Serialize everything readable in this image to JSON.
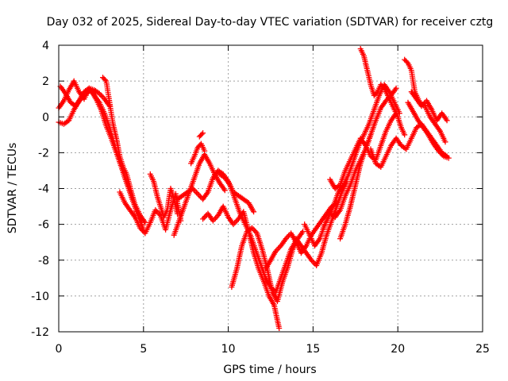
{
  "chart_data": {
    "type": "scatter",
    "title": "Day 032 of 2025, Sidereal Day-to-day VTEC variation (SDTVAR) for receiver cztg",
    "xlabel": "GPS time / hours",
    "ylabel": "SDTVAR / TECUs",
    "xlim": [
      0,
      25
    ],
    "ylim": [
      -12,
      4
    ],
    "xticks": [
      0,
      5,
      10,
      15,
      20,
      25
    ],
    "yticks": [
      -12,
      -10,
      -8,
      -6,
      -4,
      -2,
      0,
      2,
      4
    ],
    "grid": true,
    "marker": "+",
    "color": "#ff0000",
    "tracks": [
      {
        "x": [
          0.0,
          0.3,
          0.6,
          0.9,
          1.2,
          1.5,
          1.8,
          2.1,
          2.4,
          2.7,
          3.0,
          3.3,
          3.6,
          3.9,
          4.2,
          4.5,
          4.8,
          5.1
        ],
        "y": [
          0.5,
          0.9,
          1.5,
          2.0,
          1.4,
          1.0,
          1.6,
          1.2,
          0.8,
          0.2,
          -0.6,
          -1.6,
          -2.5,
          -3.4,
          -4.2,
          -4.9,
          -5.5,
          -5.9
        ]
      },
      {
        "x": [
          0.0,
          0.3,
          0.6,
          0.9,
          1.2,
          1.5,
          1.8,
          2.1,
          2.4,
          2.7,
          3.0
        ],
        "y": [
          -0.3,
          -0.4,
          -0.2,
          0.4,
          0.9,
          1.4,
          1.6,
          1.5,
          1.3,
          1.0,
          0.6
        ]
      },
      {
        "x": [
          0.1,
          0.4,
          0.7,
          1.0,
          1.3,
          1.6,
          1.9,
          2.2,
          2.5,
          2.8,
          3.1,
          3.4,
          3.7,
          4.0,
          4.3,
          4.6,
          4.9
        ],
        "y": [
          1.7,
          1.3,
          0.8,
          0.6,
          1.0,
          1.3,
          1.5,
          1.0,
          0.4,
          -0.5,
          -1.2,
          -2.0,
          -2.8,
          -3.6,
          -4.5,
          -5.3,
          -6.0
        ]
      },
      {
        "x": [
          2.6,
          2.8,
          3.0,
          3.2,
          3.4,
          3.6,
          3.8,
          4.0,
          4.2,
          4.4,
          4.6,
          4.8,
          5.0
        ],
        "y": [
          2.2,
          2.0,
          0.8,
          -0.4,
          -1.2,
          -2.2,
          -2.8,
          -3.2,
          -3.9,
          -4.6,
          -5.3,
          -5.8,
          -6.3
        ]
      },
      {
        "x": [
          3.6,
          3.9,
          4.2,
          4.5,
          4.8,
          5.1,
          5.4,
          5.7,
          6.0,
          6.3,
          6.6,
          6.9,
          7.2
        ],
        "y": [
          -4.2,
          -4.8,
          -5.2,
          -5.6,
          -6.2,
          -6.5,
          -5.9,
          -5.2,
          -5.5,
          -6.3,
          -5.2,
          -4.3,
          -5.8
        ]
      },
      {
        "x": [
          5.4,
          5.6,
          5.8,
          6.0,
          6.2,
          6.4,
          6.6,
          6.8,
          7.0
        ],
        "y": [
          -3.2,
          -3.6,
          -4.4,
          -5.0,
          -5.6,
          -5.2,
          -4.0,
          -4.6,
          -5.4
        ]
      },
      {
        "x": [
          6.8,
          7.1,
          7.4,
          7.7,
          8.0,
          8.3,
          8.6,
          8.9,
          9.2,
          9.5,
          9.8
        ],
        "y": [
          -6.6,
          -5.8,
          -5.0,
          -4.2,
          -3.4,
          -2.6,
          -2.1,
          -2.6,
          -3.2,
          -3.7,
          -4.1
        ]
      },
      {
        "x": [
          7.0,
          7.3,
          7.6,
          7.9,
          8.2,
          8.5,
          8.8,
          9.1,
          9.4,
          9.7,
          10.0,
          10.3,
          10.6,
          10.9,
          11.2,
          11.5
        ],
        "y": [
          -4.6,
          -4.4,
          -4.2,
          -4.0,
          -4.3,
          -4.6,
          -4.2,
          -3.4,
          -3.0,
          -3.2,
          -3.6,
          -4.2,
          -4.4,
          -4.6,
          -4.8,
          -5.3
        ]
      },
      {
        "x": [
          8.5,
          8.8,
          9.1,
          9.4,
          9.7,
          10.0,
          10.3,
          10.6,
          10.9,
          11.2,
          11.5,
          11.8,
          12.1,
          12.4,
          12.7,
          13.0
        ],
        "y": [
          -5.7,
          -5.4,
          -5.8,
          -5.5,
          -5.0,
          -5.6,
          -6.0,
          -5.7,
          -5.3,
          -6.4,
          -7.6,
          -8.5,
          -9.2,
          -10.0,
          -10.5,
          -11.8
        ]
      },
      {
        "x": [
          9.5,
          9.8,
          10.1,
          10.4,
          10.7,
          11.0,
          11.3,
          11.6,
          11.9,
          12.2,
          12.5,
          12.8,
          13.1,
          13.4,
          13.7,
          14.0
        ],
        "y": [
          -3.2,
          -3.4,
          -3.8,
          -4.6,
          -5.4,
          -6.0,
          -6.6,
          -7.4,
          -8.2,
          -9.0,
          -9.5,
          -9.8,
          -9.0,
          -8.2,
          -7.4,
          -6.9
        ]
      },
      {
        "x": [
          10.2,
          10.5,
          10.8,
          11.1,
          11.4,
          11.7,
          12.0,
          12.3,
          12.6,
          12.9,
          13.2,
          13.5,
          13.8,
          14.1,
          14.4
        ],
        "y": [
          -9.5,
          -8.5,
          -7.2,
          -6.4,
          -6.2,
          -6.5,
          -7.4,
          -8.5,
          -9.8,
          -10.3,
          -9.2,
          -8.4,
          -7.4,
          -6.8,
          -6.4
        ]
      },
      {
        "x": [
          12.2,
          12.5,
          12.8,
          13.1,
          13.4,
          13.7,
          14.0,
          14.3,
          14.6,
          14.9,
          15.2,
          15.5,
          15.8,
          16.1,
          16.4
        ],
        "y": [
          -8.5,
          -8.0,
          -7.5,
          -7.2,
          -6.8,
          -6.5,
          -7.0,
          -7.6,
          -7.2,
          -6.6,
          -6.2,
          -5.8,
          -5.4,
          -5.0,
          -4.8
        ]
      },
      {
        "x": [
          14.0,
          14.3,
          14.6,
          14.9,
          15.2,
          15.5,
          15.8,
          16.1,
          16.4,
          16.7,
          17.0
        ],
        "y": [
          -6.8,
          -7.2,
          -7.6,
          -8.0,
          -8.3,
          -7.6,
          -6.6,
          -5.8,
          -5.0,
          -4.2,
          -3.6
        ]
      },
      {
        "x": [
          14.5,
          14.8,
          15.1,
          15.4,
          15.7,
          16.0,
          16.3,
          16.6,
          16.9,
          17.2,
          17.5,
          17.8,
          18.1,
          18.4
        ],
        "y": [
          -6.0,
          -6.6,
          -7.2,
          -6.8,
          -6.0,
          -5.4,
          -5.6,
          -5.2,
          -4.4,
          -3.8,
          -3.0,
          -2.4,
          -1.8,
          -1.0
        ]
      },
      {
        "x": [
          15.6,
          15.9,
          16.2,
          16.5,
          16.8,
          17.1,
          17.4,
          17.7,
          18.0,
          18.3,
          18.6,
          18.9,
          19.2,
          19.5,
          19.8,
          20.1
        ],
        "y": [
          -6.2,
          -5.6,
          -5.0,
          -4.2,
          -3.8,
          -3.2,
          -2.4,
          -1.6,
          -1.0,
          -0.4,
          0.4,
          1.2,
          1.8,
          1.4,
          0.8,
          0.2
        ]
      },
      {
        "x": [
          16.0,
          16.3,
          16.6,
          16.9,
          17.2,
          17.5,
          17.8,
          18.1,
          18.4,
          18.7,
          19.0,
          19.3,
          19.6,
          19.9
        ],
        "y": [
          -3.5,
          -4.0,
          -3.8,
          -3.0,
          -2.4,
          -1.8,
          -1.2,
          -1.6,
          -2.2,
          -2.4,
          -1.6,
          -0.8,
          -0.2,
          0.2
        ]
      },
      {
        "x": [
          16.6,
          16.9,
          17.2,
          17.5,
          17.8,
          18.1,
          18.4,
          18.7,
          19.0,
          19.3,
          19.6,
          19.9
        ],
        "y": [
          -6.8,
          -6.0,
          -5.0,
          -3.8,
          -2.6,
          -1.8,
          -1.0,
          -0.2,
          0.5,
          0.9,
          1.2,
          1.6
        ]
      },
      {
        "x": [
          17.8,
          18.0,
          18.2,
          18.4,
          18.6,
          18.8,
          19.0,
          19.2,
          19.4,
          19.6,
          19.8,
          20.0,
          20.2,
          20.4
        ],
        "y": [
          3.8,
          3.4,
          2.6,
          1.8,
          1.2,
          1.4,
          1.8,
          1.6,
          1.2,
          0.8,
          0.4,
          0.0,
          -0.6,
          -1.0
        ]
      },
      {
        "x": [
          18.4,
          18.7,
          19.0,
          19.3,
          19.6,
          19.9,
          20.2,
          20.5,
          20.8,
          21.1,
          21.4,
          21.7,
          22.0,
          22.3,
          22.6,
          22.9
        ],
        "y": [
          -1.8,
          -2.6,
          -2.8,
          -2.2,
          -1.6,
          -1.2,
          -1.6,
          -1.8,
          -1.2,
          -0.6,
          -0.4,
          -0.8,
          -1.2,
          -1.6,
          -2.0,
          -2.2
        ]
      },
      {
        "x": [
          20.4,
          20.6,
          20.8,
          21.0,
          21.3,
          21.6,
          21.9,
          22.2,
          22.5,
          22.8
        ],
        "y": [
          3.2,
          3.0,
          2.6,
          1.4,
          0.8,
          0.6,
          0.0,
          -0.4,
          -0.8,
          -1.4
        ]
      },
      {
        "x": [
          20.8,
          21.1,
          21.4,
          21.7,
          22.0,
          22.3,
          22.6,
          22.9
        ],
        "y": [
          1.4,
          1.0,
          0.6,
          0.9,
          0.4,
          -0.2,
          0.2,
          -0.2
        ]
      },
      {
        "x": [
          20.6,
          20.9,
          21.2,
          21.5,
          21.8,
          22.1,
          22.4,
          22.7,
          23.0
        ],
        "y": [
          0.8,
          0.3,
          -0.2,
          -0.6,
          -1.0,
          -1.5,
          -1.9,
          -2.2,
          -2.3
        ]
      },
      {
        "x": [
          8.3,
          8.5
        ],
        "y": [
          -1.1,
          -0.9
        ]
      },
      {
        "x": [
          7.8,
          8.0,
          8.2,
          8.4,
          8.6
        ],
        "y": [
          -2.6,
          -2.2,
          -1.7,
          -1.5,
          -1.9
        ]
      }
    ]
  }
}
